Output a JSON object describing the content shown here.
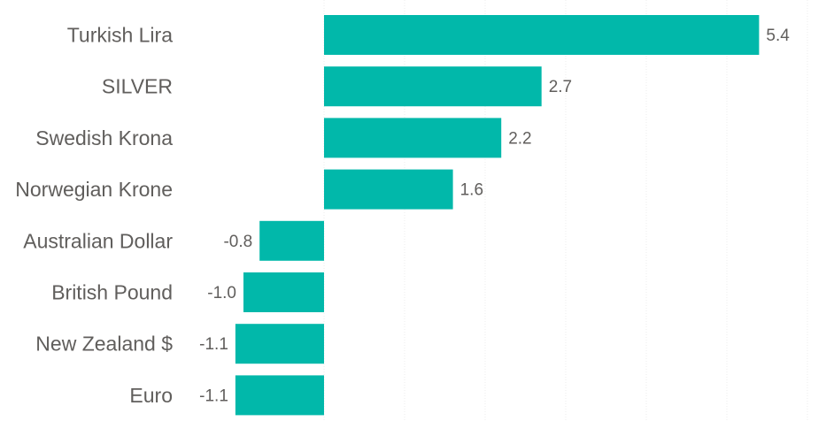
{
  "chart_data": {
    "type": "bar",
    "orientation": "horizontal",
    "categories": [
      "Turkish Lira",
      "SILVER",
      "Swedish Krona",
      "Norwegian Krone",
      "Australian Dollar",
      "British Pound",
      "New Zealand $",
      "Euro"
    ],
    "values": [
      5.4,
      2.7,
      2.2,
      1.6,
      -0.8,
      -1.0,
      -1.1,
      -1.1
    ],
    "value_labels": [
      "5.4",
      "2.7",
      "2.2",
      "1.6",
      "-0.8",
      "-1.0",
      "-1.1",
      "-1.1"
    ],
    "bar_color": "#01b8aa",
    "xlim": [
      -1.2,
      6.1
    ],
    "gridlines_at": [
      0,
      1,
      2,
      3,
      4,
      5,
      6
    ],
    "grid": true,
    "title": "",
    "xlabel": "",
    "ylabel": ""
  }
}
